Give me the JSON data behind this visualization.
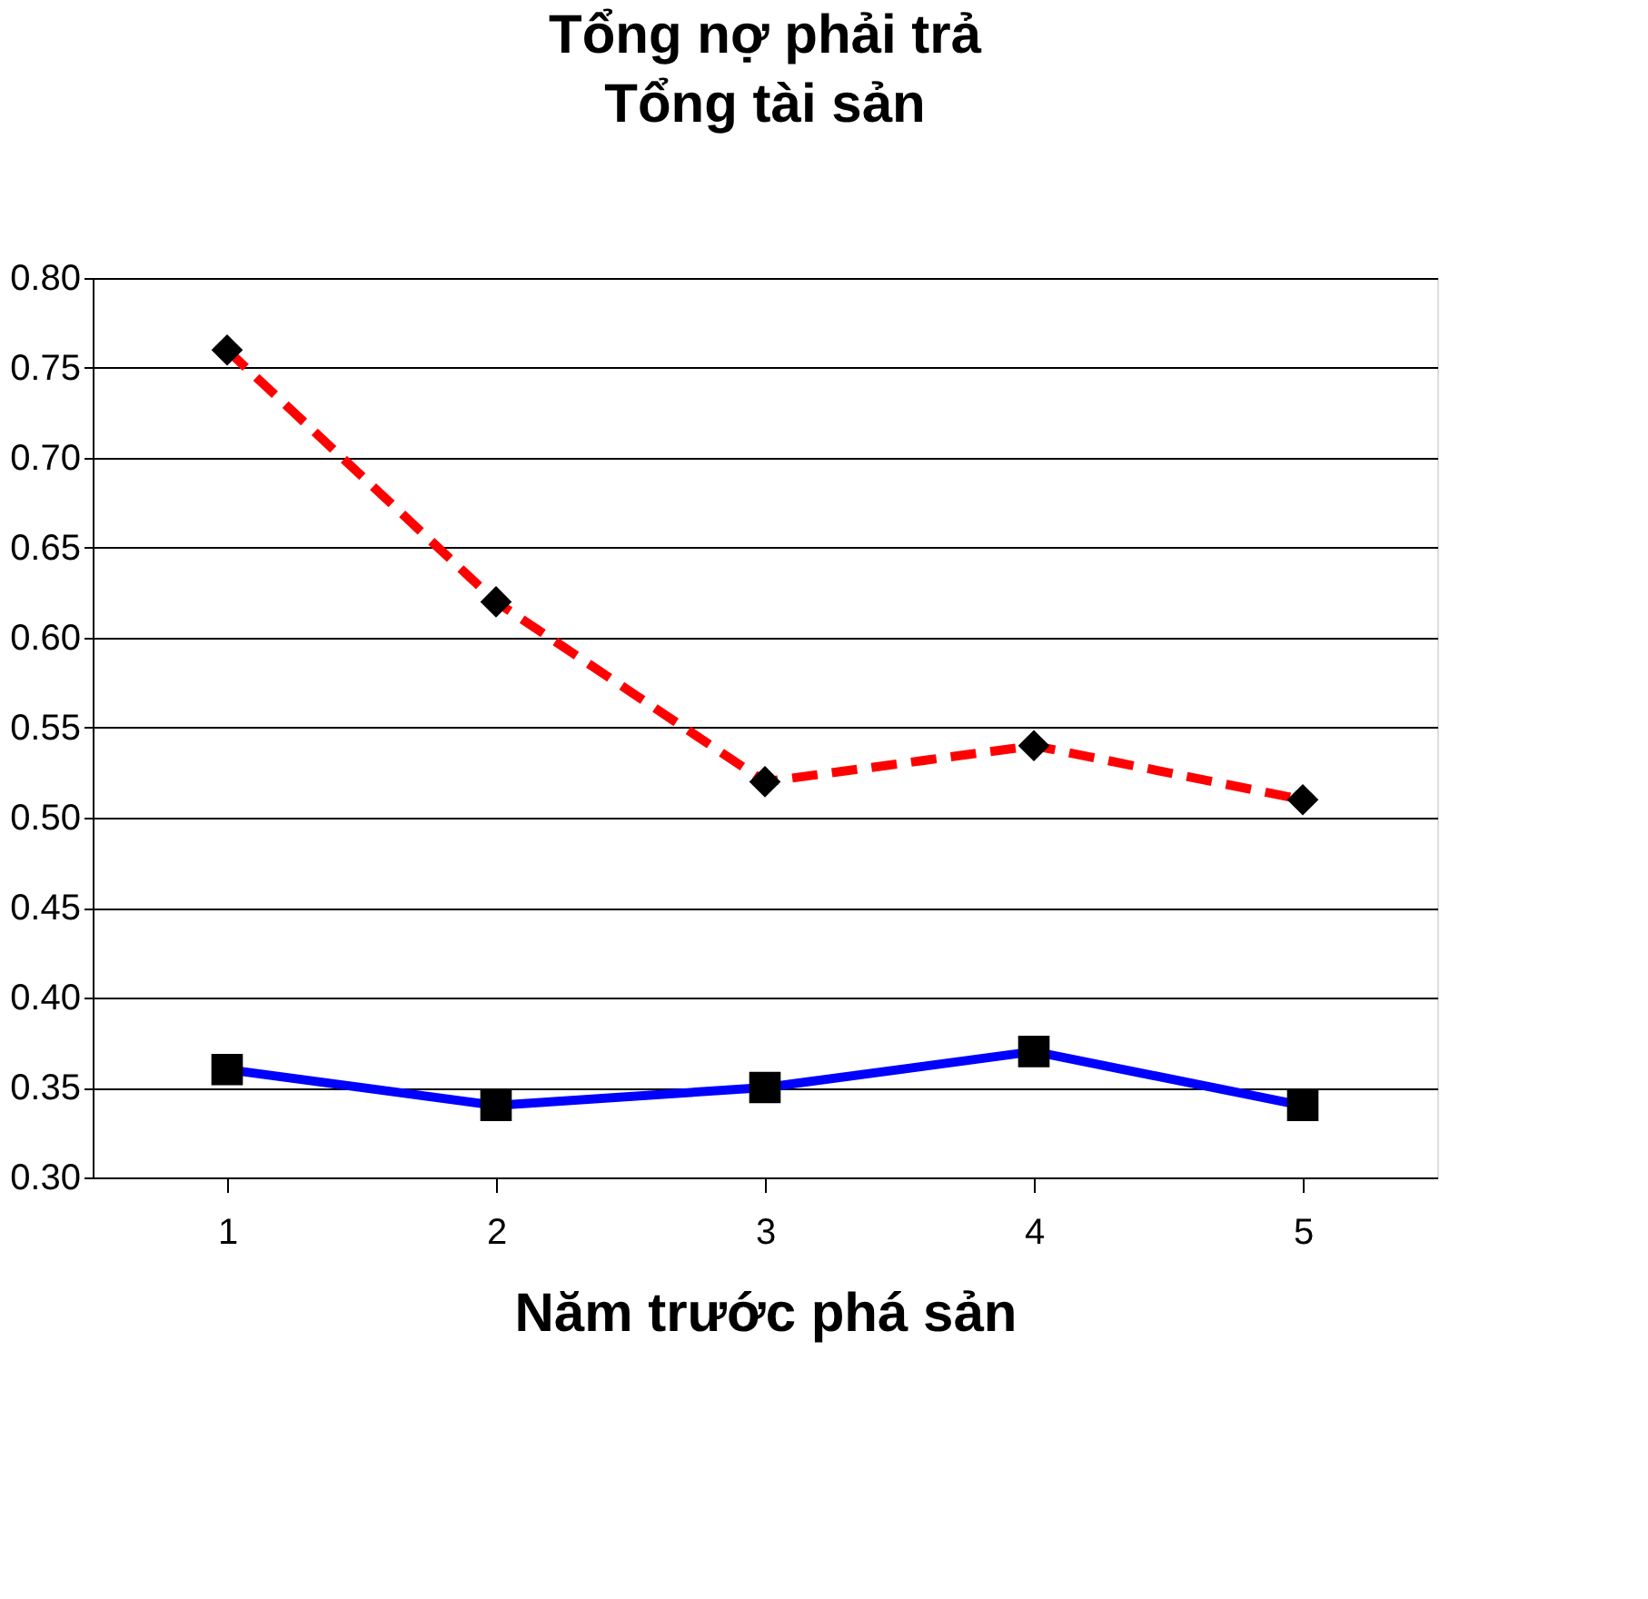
{
  "chart_data": {
    "type": "line",
    "title": "Tổng nợ phải trả",
    "subtitle": "Tổng tài sản",
    "xlabel": "Năm trước phá sản",
    "categories": [
      "1",
      "2",
      "3",
      "4",
      "5"
    ],
    "series": [
      {
        "color": "#ff0000",
        "line_style": "dashed",
        "marker": "diamond",
        "values": [
          0.76,
          0.62,
          0.52,
          0.54,
          0.51
        ]
      },
      {
        "color": "#0000ff",
        "line_style": "solid",
        "marker": "square",
        "values": [
          0.36,
          0.34,
          0.35,
          0.37,
          0.34
        ]
      }
    ],
    "ylim": [
      0.3,
      0.8
    ],
    "yticks": [
      {
        "value": 0.3,
        "label": "0.30"
      },
      0.35,
      {
        "value": 0.4,
        "label": "0.40"
      },
      0.45,
      {
        "value": 0.5,
        "label": "0.50"
      },
      0.55,
      {
        "value": 0.6,
        "label": "0.60"
      },
      0.65,
      {
        "value": 0.7,
        "label": "0.70"
      },
      0.75,
      {
        "value": 0.8,
        "label": "0.80"
      }
    ],
    "grid": "y"
  }
}
